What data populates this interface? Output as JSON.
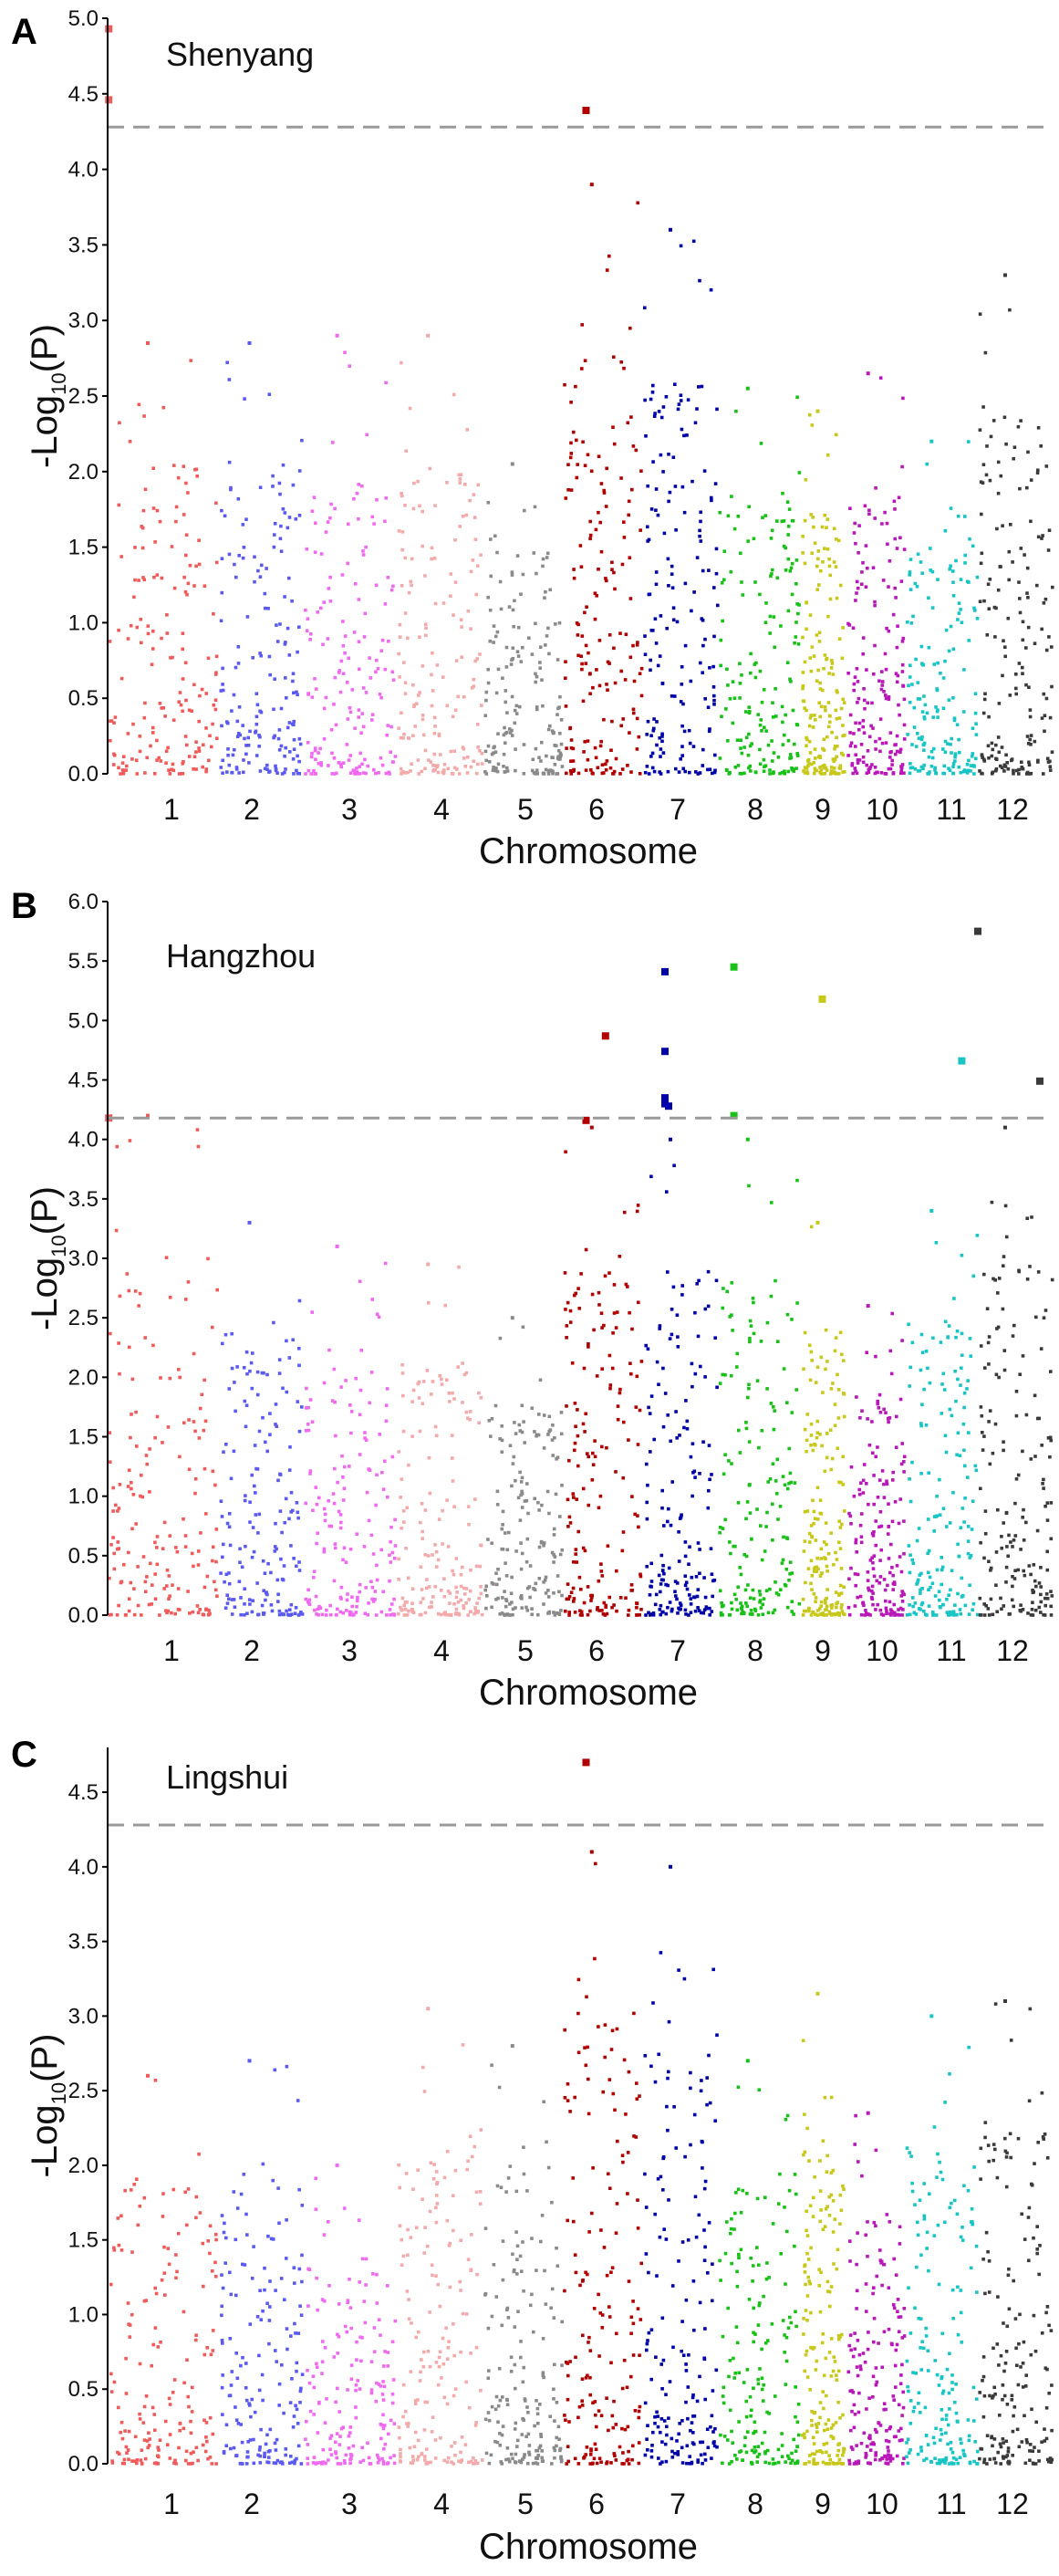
{
  "figure": {
    "xlabel": "Chromosome",
    "ylabel_main": "-Log",
    "ylabel_sub": "10",
    "ylabel_tail": "(P)"
  },
  "chromosomes": [
    "1",
    "2",
    "3",
    "4",
    "5",
    "6",
    "7",
    "8",
    "9",
    "10",
    "11",
    "12"
  ],
  "colors": [
    "#f05a5a",
    "#5a5af0",
    "#f06af0",
    "#f2aaaa",
    "#8a8a8a",
    "#b00000",
    "#0000a8",
    "#18c018",
    "#c8c81a",
    "#b818b8",
    "#18c4c4",
    "#3a3a3a"
  ],
  "chart_data": [
    {
      "type": "scatter",
      "panel": "A",
      "title": "Shenyang",
      "xlabel": "Chromosome",
      "ylabel": "-Log10(P)",
      "ylim": [
        0,
        5.0
      ],
      "yticks": [
        "0.0",
        "0.5",
        "1.0",
        "1.5",
        "2.0",
        "2.5",
        "3.0",
        "3.5",
        "4.0",
        "4.5",
        "5.0"
      ],
      "threshold": 4.28,
      "chrom_max": [
        2.85,
        2.85,
        2.9,
        2.9,
        2.05,
        3.9,
        3.6,
        2.55,
        2.4,
        2.65,
        2.2,
        3.3
      ],
      "highlights": [
        {
          "chrom": 1,
          "pos": 0.01,
          "y": 4.93
        },
        {
          "chrom": 1,
          "pos": 0.01,
          "y": 4.46
        },
        {
          "chrom": 6,
          "pos": 0.3,
          "y": 4.39
        }
      ]
    },
    {
      "type": "scatter",
      "panel": "B",
      "title": "Hangzhou",
      "xlabel": "Chromosome",
      "ylabel": "-Log10(P)",
      "ylim": [
        0,
        6.0
      ],
      "yticks": [
        "0.0",
        "0.5",
        "1.0",
        "1.5",
        "2.0",
        "2.5",
        "3.0",
        "3.5",
        "4.0",
        "4.5",
        "5.0",
        "5.5",
        "6.0"
      ],
      "threshold": 4.18,
      "chrom_max": [
        4.2,
        3.3,
        3.1,
        2.95,
        2.5,
        4.1,
        4.0,
        4.0,
        3.3,
        2.6,
        3.4,
        4.1
      ],
      "highlights": [
        {
          "chrom": 1,
          "pos": 0.01,
          "y": 4.18
        },
        {
          "chrom": 6,
          "pos": 0.55,
          "y": 4.87
        },
        {
          "chrom": 6,
          "pos": 0.3,
          "y": 4.16
        },
        {
          "chrom": 7,
          "pos": 0.3,
          "y": 5.41
        },
        {
          "chrom": 7,
          "pos": 0.3,
          "y": 4.74
        },
        {
          "chrom": 7,
          "pos": 0.3,
          "y": 4.35
        },
        {
          "chrom": 7,
          "pos": 0.3,
          "y": 4.3
        },
        {
          "chrom": 7,
          "pos": 0.35,
          "y": 4.28
        },
        {
          "chrom": 8,
          "pos": 0.2,
          "y": 5.45
        },
        {
          "chrom": 8,
          "pos": 0.2,
          "y": 4.2
        },
        {
          "chrom": 9,
          "pos": 0.5,
          "y": 5.18
        },
        {
          "chrom": 11,
          "pos": 0.8,
          "y": 4.66
        },
        {
          "chrom": 12,
          "pos": 0.0,
          "y": 5.75
        },
        {
          "chrom": 12,
          "pos": 0.85,
          "y": 4.49
        }
      ]
    },
    {
      "type": "scatter",
      "panel": "C",
      "title": "Lingshui",
      "xlabel": "Chromosome",
      "ylabel": "-Log10(P)",
      "ylim": [
        0,
        4.8
      ],
      "yticks": [
        "0.0",
        "0.5",
        "1.0",
        "1.5",
        "2.0",
        "2.5",
        "3.0",
        "3.5",
        "4.0",
        "4.5"
      ],
      "threshold": 4.28,
      "chrom_max": [
        2.6,
        2.7,
        2.0,
        3.05,
        2.8,
        4.1,
        4.0,
        2.7,
        3.15,
        2.35,
        3.0,
        3.1
      ],
      "highlights": [
        {
          "chrom": 6,
          "pos": 0.3,
          "y": 4.7
        }
      ]
    }
  ]
}
